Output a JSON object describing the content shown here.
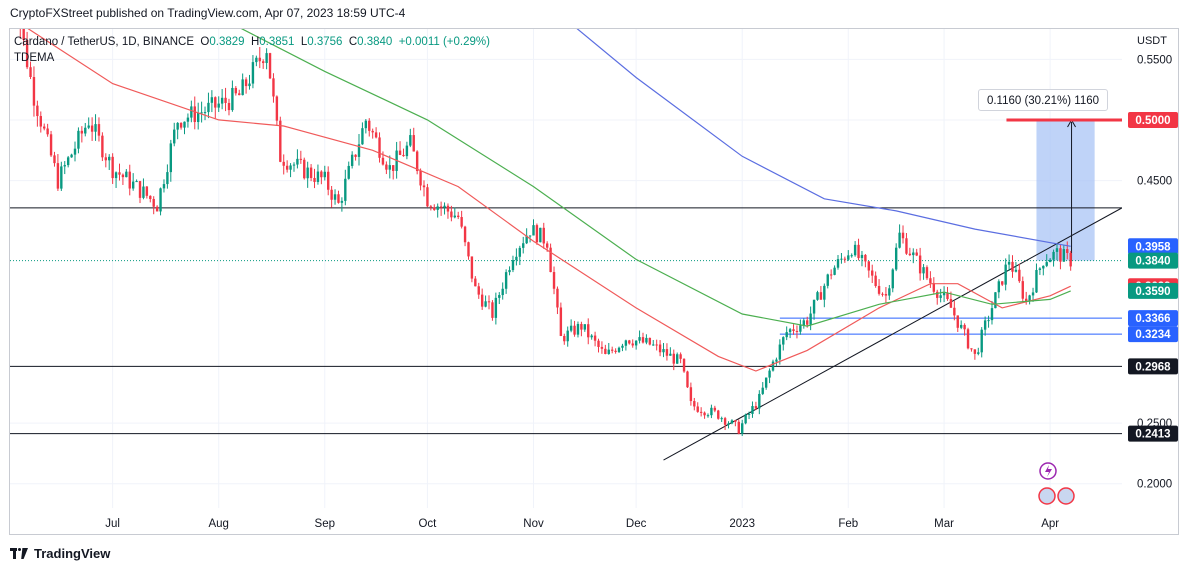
{
  "header": {
    "publisher_line": "CryptoFXStreet published on TradingView.com, Apr 07, 2023 18:59 UTC-4"
  },
  "legend": {
    "symbol": "Cardano / TetherUS, 1D, BINANCE",
    "open_label": "O",
    "open_value": "0.3829",
    "high_label": "H",
    "high_value": "0.3851",
    "low_label": "L",
    "low_value": "0.3756",
    "close_label": "C",
    "close_value": "0.3840",
    "change": "+0.0011 (+0.29%)",
    "indicator": "TDEMA"
  },
  "footer": {
    "brand": "TradingView"
  },
  "measure": {
    "label": "0.1160 (30.21%) 1160"
  },
  "colors": {
    "up": "#089981",
    "down": "#f23645",
    "ema_red": "#f05a5a",
    "ema_green": "#4caf50",
    "ema_blue": "#5b6ee1",
    "target": "#f23645",
    "measure_fill": "#aac4f5"
  },
  "chart_data": {
    "type": "candlestick",
    "pair": "ADA/USDT",
    "y_axis_label": "USDT",
    "y_ticks": [
      0.55,
      0.5,
      0.45,
      0.25,
      0.2
    ],
    "y_tick_labels": [
      "0.5500",
      "0.5000",
      "0.4500",
      "0.2500",
      "0.2000"
    ],
    "ylim": [
      0.18,
      0.575
    ],
    "x_months": [
      {
        "label": "Jul",
        "date": "2022-07-01"
      },
      {
        "label": "Aug",
        "date": "2022-08-01"
      },
      {
        "label": "Sep",
        "date": "2022-09-01"
      },
      {
        "label": "Oct",
        "date": "2022-10-01"
      },
      {
        "label": "Nov",
        "date": "2022-11-01"
      },
      {
        "label": "Dec",
        "date": "2022-12-01"
      },
      {
        "label": "2023",
        "date": "2023-01-01"
      },
      {
        "label": "Feb",
        "date": "2023-02-01"
      },
      {
        "label": "Mar",
        "date": "2023-03-01"
      },
      {
        "label": "Apr",
        "date": "2023-04-01"
      }
    ],
    "x_start": "2022-06-01",
    "x_end": "2023-04-22",
    "close_path": [
      {
        "date": "2022-06-01",
        "v": 0.62
      },
      {
        "date": "2022-06-08",
        "v": 0.52
      },
      {
        "date": "2022-06-15",
        "v": 0.45
      },
      {
        "date": "2022-06-24",
        "v": 0.5
      },
      {
        "date": "2022-07-01",
        "v": 0.46
      },
      {
        "date": "2022-07-10",
        "v": 0.44
      },
      {
        "date": "2022-07-14",
        "v": 0.43
      },
      {
        "date": "2022-07-20",
        "v": 0.5
      },
      {
        "date": "2022-07-30",
        "v": 0.51
      },
      {
        "date": "2022-08-07",
        "v": 0.52
      },
      {
        "date": "2022-08-13",
        "v": 0.55
      },
      {
        "date": "2022-08-15",
        "v": 0.56
      },
      {
        "date": "2022-08-19",
        "v": 0.47
      },
      {
        "date": "2022-08-25",
        "v": 0.46
      },
      {
        "date": "2022-09-01",
        "v": 0.45
      },
      {
        "date": "2022-09-05",
        "v": 0.43
      },
      {
        "date": "2022-09-13",
        "v": 0.5
      },
      {
        "date": "2022-09-20",
        "v": 0.46
      },
      {
        "date": "2022-09-26",
        "v": 0.48
      },
      {
        "date": "2022-10-01",
        "v": 0.435
      },
      {
        "date": "2022-10-10",
        "v": 0.42
      },
      {
        "date": "2022-10-15",
        "v": 0.36
      },
      {
        "date": "2022-10-20",
        "v": 0.34
      },
      {
        "date": "2022-10-26",
        "v": 0.39
      },
      {
        "date": "2022-10-31",
        "v": 0.41
      },
      {
        "date": "2022-11-05",
        "v": 0.4
      },
      {
        "date": "2022-11-09",
        "v": 0.32
      },
      {
        "date": "2022-11-15",
        "v": 0.33
      },
      {
        "date": "2022-11-22",
        "v": 0.305
      },
      {
        "date": "2022-11-28",
        "v": 0.32
      },
      {
        "date": "2022-12-05",
        "v": 0.315
      },
      {
        "date": "2022-12-14",
        "v": 0.3
      },
      {
        "date": "2022-12-17",
        "v": 0.265
      },
      {
        "date": "2022-12-25",
        "v": 0.257
      },
      {
        "date": "2022-12-31",
        "v": 0.245
      },
      {
        "date": "2023-01-06",
        "v": 0.27
      },
      {
        "date": "2023-01-10",
        "v": 0.3
      },
      {
        "date": "2023-01-14",
        "v": 0.325
      },
      {
        "date": "2023-01-20",
        "v": 0.335
      },
      {
        "date": "2023-01-27",
        "v": 0.375
      },
      {
        "date": "2023-02-02",
        "v": 0.395
      },
      {
        "date": "2023-02-09",
        "v": 0.365
      },
      {
        "date": "2023-02-12",
        "v": 0.355
      },
      {
        "date": "2023-02-16",
        "v": 0.405
      },
      {
        "date": "2023-02-24",
        "v": 0.37
      },
      {
        "date": "2023-03-03",
        "v": 0.345
      },
      {
        "date": "2023-03-10",
        "v": 0.305
      },
      {
        "date": "2023-03-13",
        "v": 0.33
      },
      {
        "date": "2023-03-20",
        "v": 0.385
      },
      {
        "date": "2023-03-25",
        "v": 0.35
      },
      {
        "date": "2023-03-30",
        "v": 0.385
      },
      {
        "date": "2023-04-03",
        "v": 0.39
      },
      {
        "date": "2023-04-07",
        "v": 0.384
      }
    ],
    "series": [
      {
        "key": "ema_red",
        "points": [
          {
            "date": "2022-06-01",
            "v": 0.585
          },
          {
            "date": "2022-07-01",
            "v": 0.53
          },
          {
            "date": "2022-08-01",
            "v": 0.5
          },
          {
            "date": "2022-08-20",
            "v": 0.495
          },
          {
            "date": "2022-09-15",
            "v": 0.475
          },
          {
            "date": "2022-10-10",
            "v": 0.445
          },
          {
            "date": "2022-11-01",
            "v": 0.4
          },
          {
            "date": "2022-12-01",
            "v": 0.345
          },
          {
            "date": "2022-12-25",
            "v": 0.305
          },
          {
            "date": "2023-01-05",
            "v": 0.293
          },
          {
            "date": "2023-01-20",
            "v": 0.31
          },
          {
            "date": "2023-02-10",
            "v": 0.345
          },
          {
            "date": "2023-02-25",
            "v": 0.365
          },
          {
            "date": "2023-03-05",
            "v": 0.365
          },
          {
            "date": "2023-03-18",
            "v": 0.345
          },
          {
            "date": "2023-04-01",
            "v": 0.355
          },
          {
            "date": "2023-04-07",
            "v": 0.3629
          }
        ]
      },
      {
        "key": "ema_green",
        "points": [
          {
            "date": "2022-06-01",
            "v": 0.7
          },
          {
            "date": "2022-08-01",
            "v": 0.585
          },
          {
            "date": "2022-09-01",
            "v": 0.54
          },
          {
            "date": "2022-10-01",
            "v": 0.5
          },
          {
            "date": "2022-11-01",
            "v": 0.445
          },
          {
            "date": "2022-12-01",
            "v": 0.385
          },
          {
            "date": "2023-01-01",
            "v": 0.34
          },
          {
            "date": "2023-01-20",
            "v": 0.33
          },
          {
            "date": "2023-02-10",
            "v": 0.348
          },
          {
            "date": "2023-03-01",
            "v": 0.358
          },
          {
            "date": "2023-03-15",
            "v": 0.348
          },
          {
            "date": "2023-04-01",
            "v": 0.352
          },
          {
            "date": "2023-04-07",
            "v": 0.359
          }
        ]
      },
      {
        "key": "ema_blue",
        "points": [
          {
            "date": "2022-11-01",
            "v": 0.605
          },
          {
            "date": "2022-12-01",
            "v": 0.535
          },
          {
            "date": "2023-01-01",
            "v": 0.47
          },
          {
            "date": "2023-01-25",
            "v": 0.435
          },
          {
            "date": "2023-02-15",
            "v": 0.425
          },
          {
            "date": "2023-03-10",
            "v": 0.41
          },
          {
            "date": "2023-04-07",
            "v": 0.3958
          }
        ]
      }
    ],
    "horizontal_levels": [
      {
        "value": 0.4275,
        "label": "0.4275",
        "style": "solid",
        "color": "#131722",
        "badge": "#131722"
      },
      {
        "value": 0.2968,
        "label": "0.2968",
        "style": "solid",
        "color": "#131722",
        "badge": "#131722"
      },
      {
        "value": 0.2413,
        "label": "0.2413",
        "style": "solid",
        "color": "#131722",
        "badge": "#131722"
      },
      {
        "value": 0.3366,
        "label": "0.3366",
        "style": "solid",
        "color": "#2962ff",
        "badge": "#2962ff",
        "from": "2023-01-12"
      },
      {
        "value": 0.3234,
        "label": "0.3234",
        "style": "solid",
        "color": "#2962ff",
        "badge": "#2962ff",
        "from": "2023-01-12"
      },
      {
        "value": 0.384,
        "label": "0.3840",
        "style": "dotted",
        "color": "#089981",
        "badge": "#089981"
      }
    ],
    "price_badges": [
      {
        "value": 0.5,
        "label": "0.5000",
        "color": "#f23645"
      },
      {
        "value": 0.3958,
        "label": "0.3958",
        "color": "#2962ff"
      },
      {
        "value": 0.384,
        "label": "0.3840",
        "color": "#089981"
      },
      {
        "value": 0.3629,
        "label": "0.3629",
        "color": "#f23645"
      },
      {
        "value": 0.359,
        "label": "0.3590",
        "color": "#089981"
      },
      {
        "value": 0.3366,
        "label": "0.3366",
        "color": "#2962ff"
      },
      {
        "value": 0.3234,
        "label": "0.3234",
        "color": "#2962ff"
      },
      {
        "value": 0.2968,
        "label": "0.2968",
        "color": "#131722"
      },
      {
        "value": 0.2413,
        "label": "0.2413",
        "color": "#131722"
      }
    ],
    "target_line": {
      "value": 0.5,
      "from": "2023-03-28",
      "to": "2023-04-14"
    },
    "measure_box": {
      "from": "2023-03-28",
      "to": "2023-04-14",
      "low": 0.384,
      "high": 0.5
    },
    "trendline": {
      "from_date": "2022-12-09",
      "from_v": 0.2195,
      "to_date": "2023-04-22",
      "to_v": 0.4275
    }
  }
}
